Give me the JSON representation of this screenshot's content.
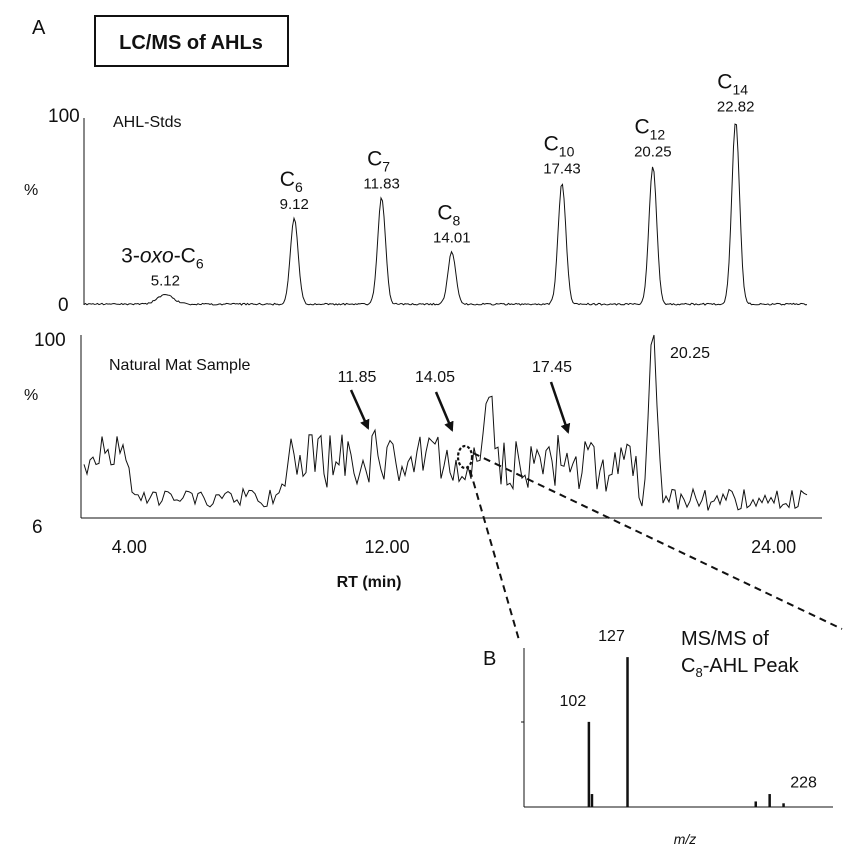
{
  "panel_labels": {
    "a": "A",
    "b": "B"
  },
  "title_box": "LC/MS of AHLs",
  "chart_data": [
    {
      "type": "line",
      "name": "AHL-Stds",
      "ylabel": "%",
      "y_ticks": [
        "100",
        "0"
      ],
      "peaks": [
        {
          "x": 5.12,
          "y": 5,
          "name_base": "3-",
          "name_italic": "oxo",
          "name_mid": "-C",
          "name_sub": "6",
          "rt": "5.12"
        },
        {
          "x": 9.12,
          "y": 46,
          "name_base": "",
          "name_italic": "",
          "name_mid": "C",
          "name_sub": "6",
          "rt": "9.12"
        },
        {
          "x": 11.83,
          "y": 57,
          "name_base": "",
          "name_italic": "",
          "name_mid": "C",
          "name_sub": "7",
          "rt": "11.83"
        },
        {
          "x": 14.01,
          "y": 28,
          "name_base": "",
          "name_italic": "",
          "name_mid": "C",
          "name_sub": "8",
          "rt": "14.01"
        },
        {
          "x": 17.43,
          "y": 65,
          "name_base": "",
          "name_italic": "",
          "name_mid": "C",
          "name_sub": "10",
          "rt": "17.43"
        },
        {
          "x": 20.25,
          "y": 74,
          "name_base": "",
          "name_italic": "",
          "name_mid": "C",
          "name_sub": "12",
          "rt": "20.25"
        },
        {
          "x": 22.82,
          "y": 98,
          "name_base": "",
          "name_italic": "",
          "name_mid": "C",
          "name_sub": "14",
          "rt": "22.82"
        }
      ]
    },
    {
      "type": "line",
      "name": "Natural Mat Sample",
      "ylabel": "%",
      "y_ticks": [
        "100",
        "6"
      ],
      "xlabel": "RT (min)",
      "x_ticks": [
        "4.00",
        "12.00",
        "24.00"
      ],
      "x_tick_values": [
        4,
        12,
        24
      ],
      "xlim": [
        2.5,
        25.5
      ],
      "annotations": [
        "11.85",
        "14.05",
        "17.45"
      ],
      "labeled_peak": "20.25"
    },
    {
      "type": "bar",
      "name": "MS/MS of C8-AHL Peak",
      "title_line1": "MS/MS of",
      "title_line2_pre": "C",
      "title_line2_sub": "8",
      "title_line2_post": "-AHL Peak",
      "xlabel": "m/z",
      "bars": [
        {
          "x": 102,
          "y": 46,
          "label": "102"
        },
        {
          "x": 104,
          "y": 7,
          "label": ""
        },
        {
          "x": 127,
          "y": 81,
          "label": "127"
        },
        {
          "x": 210,
          "y": 3,
          "label": ""
        },
        {
          "x": 219,
          "y": 7,
          "label": ""
        },
        {
          "x": 228,
          "y": 2,
          "label": "228"
        }
      ]
    }
  ]
}
